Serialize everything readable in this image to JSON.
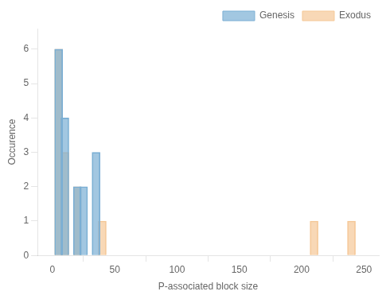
{
  "chart_data": {
    "type": "bar",
    "xlabel": "P-associated block size",
    "ylabel": "Occurence",
    "series": [
      {
        "name": "Genesis",
        "color": "#7bafd4",
        "x": [
          5,
          10,
          20,
          25,
          35
        ],
        "values": [
          6,
          4,
          2,
          2,
          3
        ]
      },
      {
        "name": "Exodus",
        "color": "#f5c897",
        "x": [
          5,
          10,
          20,
          40,
          210,
          240
        ],
        "values": [
          6,
          3,
          2,
          1,
          1,
          1
        ]
      }
    ],
    "xlim": [
      -12,
      262
    ],
    "ylim": [
      0,
      6.6
    ],
    "xticks": [
      0,
      50,
      100,
      150,
      200,
      250
    ],
    "yticks": [
      0,
      1,
      2,
      3,
      4,
      5,
      6
    ],
    "legend": "upper right",
    "grid": false
  }
}
